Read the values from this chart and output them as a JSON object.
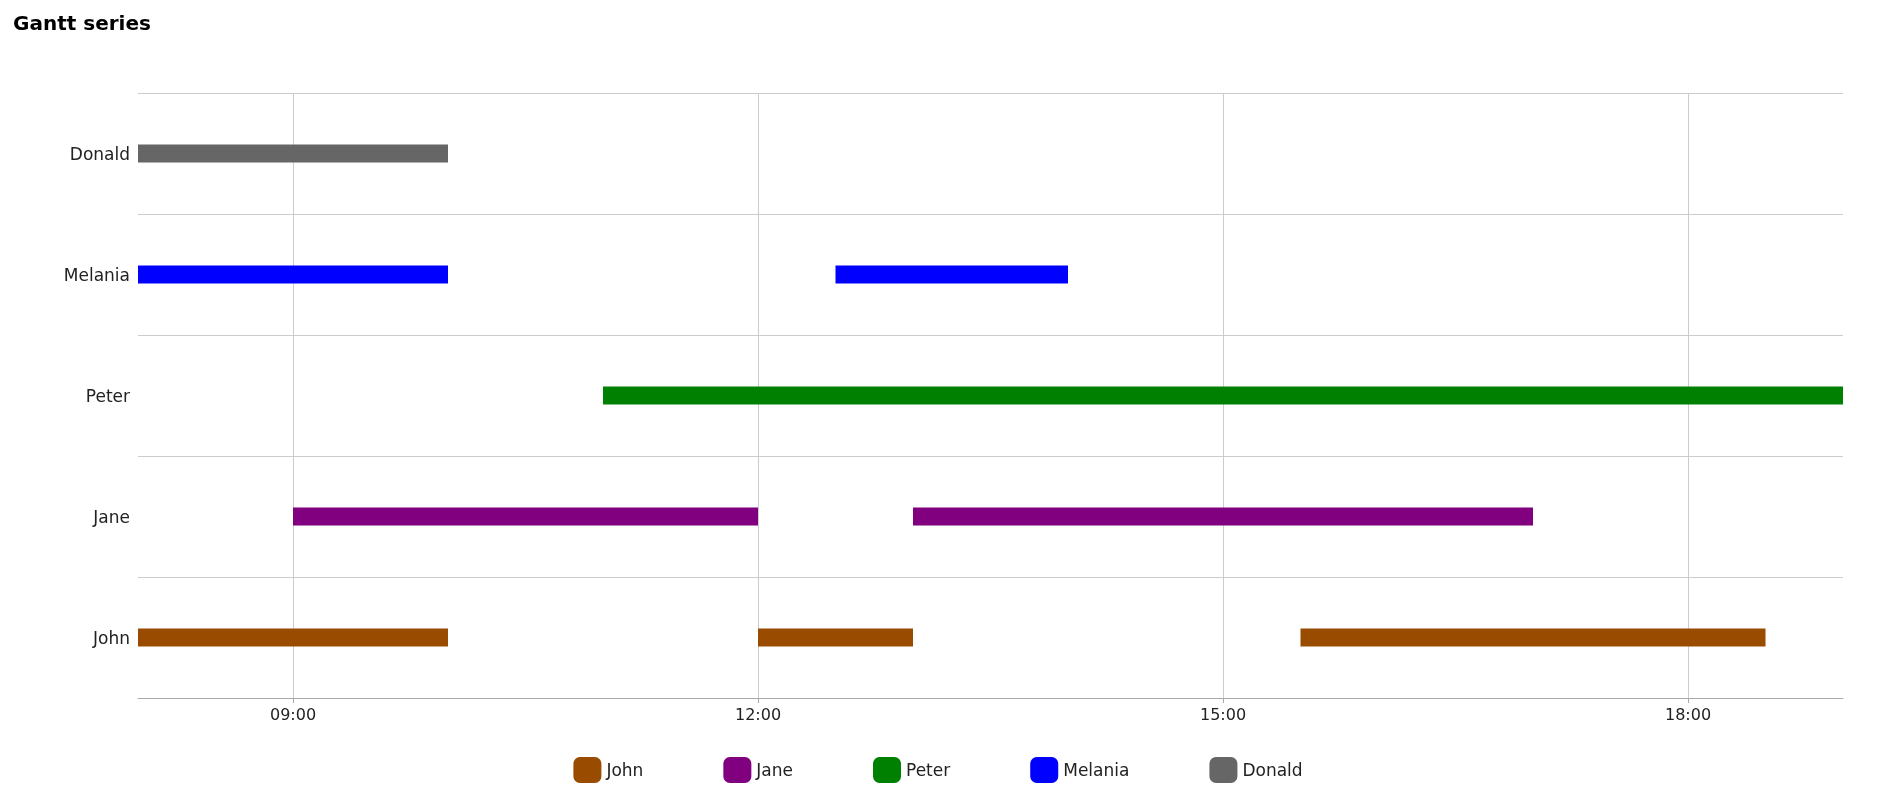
{
  "chart_data": {
    "type": "bar",
    "title": "Gantt series",
    "orientation": "horizontal",
    "categories": [
      "Donald",
      "Melania",
      "Peter",
      "Jane",
      "John"
    ],
    "xlim": [
      8,
      19
    ],
    "xticks": [
      {
        "value": 9,
        "label": "09:00"
      },
      {
        "value": 12,
        "label": "12:00"
      },
      {
        "value": 15,
        "label": "15:00"
      },
      {
        "value": 18,
        "label": "18:00"
      }
    ],
    "grid": true,
    "legend": "bottom",
    "series": [
      {
        "name": "John",
        "color": "#994c00",
        "values": [
          null,
          null,
          null,
          null,
          2
        ],
        "base": [
          null,
          null,
          null,
          null,
          8
        ]
      },
      {
        "color": "#994c00",
        "values": [
          null,
          null,
          null,
          null,
          1
        ],
        "base": [
          null,
          null,
          null,
          null,
          12
        ]
      },
      {
        "color": "#994c00",
        "values": [
          null,
          null,
          null,
          null,
          3
        ],
        "base": [
          null,
          null,
          null,
          null,
          15.5
        ]
      },
      {
        "name": "Jane",
        "color": "#800080",
        "values": [
          null,
          null,
          null,
          3,
          null
        ],
        "base": [
          null,
          null,
          null,
          9,
          null
        ]
      },
      {
        "color": "#800080",
        "values": [
          null,
          null,
          null,
          4,
          null
        ],
        "base": [
          null,
          null,
          null,
          13,
          null
        ]
      },
      {
        "name": "Peter",
        "color": "#008000",
        "values": [
          null,
          null,
          8,
          null,
          null
        ],
        "base": [
          null,
          null,
          11,
          null,
          null
        ]
      },
      {
        "name": "Melania",
        "color": "#0000ff",
        "values": [
          null,
          2,
          null,
          null,
          null
        ],
        "base": [
          null,
          8,
          null,
          null,
          null
        ]
      },
      {
        "color": "#0000ff",
        "values": [
          null,
          1.5,
          null,
          null,
          null
        ],
        "base": [
          null,
          12.5,
          null,
          null,
          null
        ]
      },
      {
        "name": "Donald",
        "color": "#666666",
        "values": [
          2,
          null,
          null,
          null,
          null
        ],
        "base": [
          8,
          null,
          null,
          null,
          null
        ]
      }
    ]
  }
}
